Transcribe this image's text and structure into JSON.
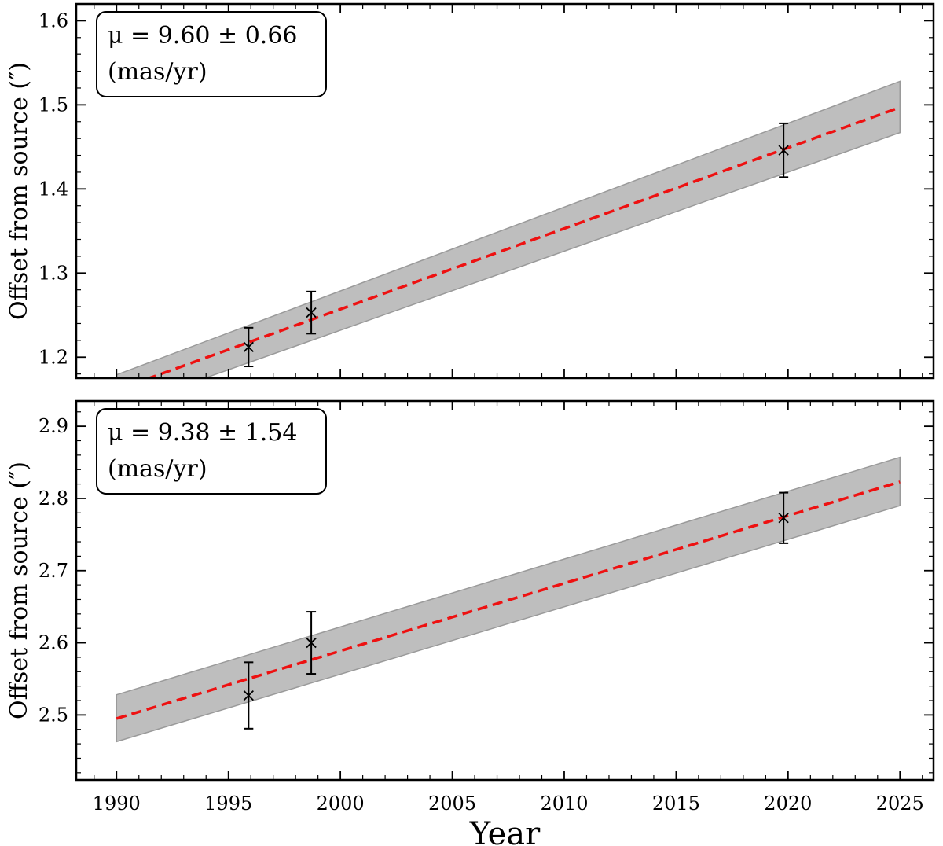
{
  "chart_data": [
    {
      "type": "line",
      "panel": "top",
      "ylabel": "Offset from source (″)",
      "xlabel": "",
      "xlim": [
        1988.2,
        2026.5
      ],
      "ylim": [
        1.175,
        1.62
      ],
      "yticks": [
        1.2,
        1.3,
        1.4,
        1.5,
        1.6
      ],
      "ytick_labels": [
        "1.2",
        "1.3",
        "1.4",
        "1.5",
        "1.6"
      ],
      "xticks": [
        1990,
        1995,
        2000,
        2005,
        2010,
        2015,
        2020,
        2025
      ],
      "show_xtick_labels": false,
      "annotation": {
        "line1": "μ = 9.60 ± 0.66",
        "line2": "(mas/yr)",
        "position": "top-left"
      },
      "fit": {
        "x": [
          1990,
          2025
        ],
        "y": [
          1.161,
          1.497
        ],
        "color": "#ee1111",
        "style": "dashed"
      },
      "band": {
        "x": [
          1990,
          2025
        ],
        "lower": [
          1.138,
          1.467
        ],
        "upper": [
          1.179,
          1.528
        ],
        "color": "#bebebe"
      },
      "points": [
        {
          "x": 1995.9,
          "y": 1.212,
          "err": 0.023
        },
        {
          "x": 1998.7,
          "y": 1.253,
          "err": 0.025
        },
        {
          "x": 2019.8,
          "y": 1.446,
          "err": 0.032
        }
      ],
      "grid": false
    },
    {
      "type": "line",
      "panel": "bottom",
      "ylabel": "Offset from source (″)",
      "xlabel": "Year",
      "xlim": [
        1988.2,
        2026.5
      ],
      "ylim": [
        2.41,
        2.935
      ],
      "yticks": [
        2.5,
        2.6,
        2.7,
        2.8,
        2.9
      ],
      "ytick_labels": [
        "2.5",
        "2.6",
        "2.7",
        "2.8",
        "2.9"
      ],
      "xticks": [
        1990,
        1995,
        2000,
        2005,
        2010,
        2015,
        2020,
        2025
      ],
      "xtick_labels": [
        "1990",
        "1995",
        "2000",
        "2005",
        "2010",
        "2015",
        "2020",
        "2025"
      ],
      "show_xtick_labels": true,
      "annotation": {
        "line1": "μ = 9.38 ± 1.54",
        "line2": "(mas/yr)",
        "position": "top-left"
      },
      "fit": {
        "x": [
          1990,
          2025
        ],
        "y": [
          2.495,
          2.823
        ],
        "color": "#ee1111",
        "style": "dashed"
      },
      "band": {
        "x": [
          1990,
          2025
        ],
        "lower": [
          2.463,
          2.79
        ],
        "upper": [
          2.528,
          2.857
        ],
        "color": "#bebebe"
      },
      "points": [
        {
          "x": 1995.9,
          "y": 2.527,
          "err": 0.046
        },
        {
          "x": 1998.7,
          "y": 2.6,
          "err": 0.043
        },
        {
          "x": 2019.8,
          "y": 2.773,
          "err": 0.035
        }
      ],
      "grid": false
    }
  ]
}
